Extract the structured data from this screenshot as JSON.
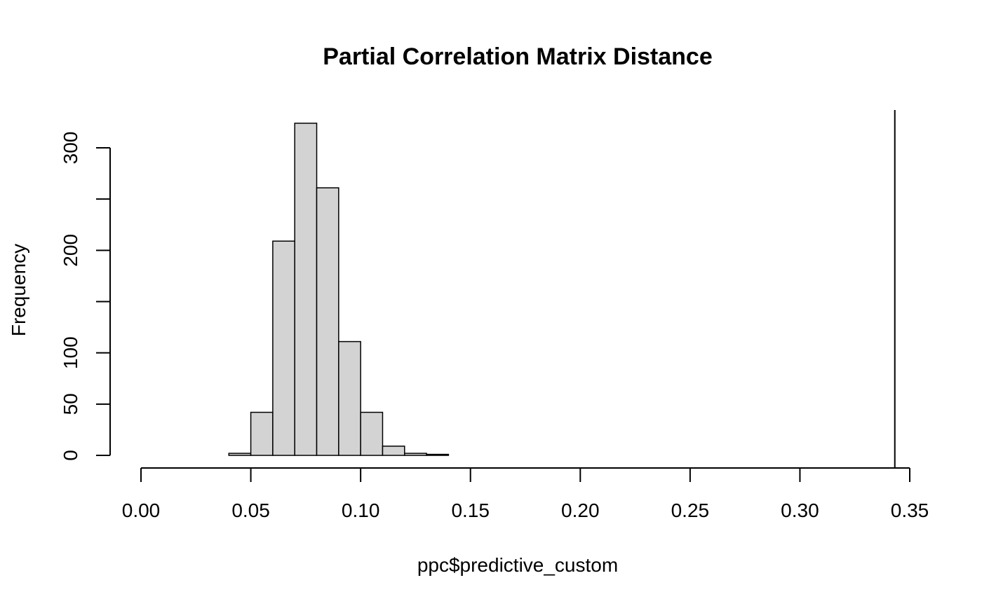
{
  "chart_data": {
    "type": "bar",
    "title": "Partial Correlation Matrix Distance",
    "xlabel": "ppc$predictive_custom",
    "ylabel": "Frequency",
    "xlim": [
      0.0,
      0.35
    ],
    "ylim": [
      0,
      325
    ],
    "x_ticks": [
      0.0,
      0.05,
      0.1,
      0.15,
      0.2,
      0.25,
      0.3,
      0.35
    ],
    "x_tick_labels": [
      "0.00",
      "0.05",
      "0.10",
      "0.15",
      "0.20",
      "0.25",
      "0.30",
      "0.35"
    ],
    "y_ticks": [
      0,
      50,
      100,
      150,
      200,
      250,
      300
    ],
    "y_tick_labels": [
      "0",
      "50",
      "100",
      "",
      "200",
      "",
      "300"
    ],
    "bins": [
      {
        "x0": 0.04,
        "x1": 0.05,
        "count": 2
      },
      {
        "x0": 0.05,
        "x1": 0.06,
        "count": 42
      },
      {
        "x0": 0.06,
        "x1": 0.07,
        "count": 209
      },
      {
        "x0": 0.07,
        "x1": 0.08,
        "count": 324
      },
      {
        "x0": 0.08,
        "x1": 0.09,
        "count": 261
      },
      {
        "x0": 0.09,
        "x1": 0.1,
        "count": 111
      },
      {
        "x0": 0.1,
        "x1": 0.11,
        "count": 42
      },
      {
        "x0": 0.11,
        "x1": 0.12,
        "count": 9
      },
      {
        "x0": 0.12,
        "x1": 0.13,
        "count": 2
      },
      {
        "x0": 0.13,
        "x1": 0.14,
        "count": 1
      }
    ],
    "reference_line_x": 0.3432,
    "grid": false,
    "legend": "none"
  }
}
